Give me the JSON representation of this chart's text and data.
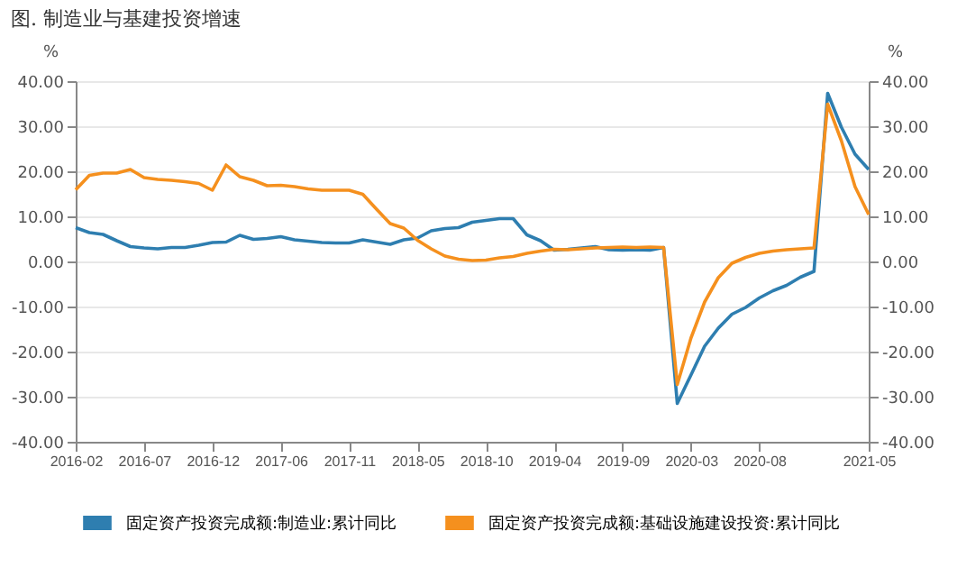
{
  "chart_data": {
    "type": "line",
    "title": "图. 制造业与基建投资增速",
    "categories": [
      "2016-02",
      null,
      null,
      null,
      null,
      "2016-07",
      null,
      null,
      null,
      null,
      "2016-12",
      null,
      null,
      null,
      null,
      "2017-06",
      null,
      null,
      null,
      null,
      "2017-11",
      null,
      null,
      null,
      null,
      "2018-05",
      null,
      null,
      null,
      null,
      "2018-10",
      null,
      null,
      null,
      null,
      "2019-04",
      null,
      null,
      null,
      null,
      "2019-09",
      null,
      null,
      null,
      null,
      "2020-03",
      null,
      null,
      null,
      null,
      "2020-08",
      null,
      null,
      null,
      null,
      null,
      null,
      null,
      "2021-05"
    ],
    "series": [
      {
        "name": "固定资产投资完成额:制造业:累计同比",
        "color": "#2e7eb0",
        "values": [
          7.5,
          6.4,
          6.0,
          4.6,
          3.3,
          3.0,
          2.8,
          3.1,
          3.1,
          3.6,
          4.2,
          4.3,
          5.8,
          4.9,
          5.1,
          5.5,
          4.8,
          4.5,
          4.2,
          4.1,
          4.1,
          4.8,
          4.3,
          3.8,
          4.8,
          5.2,
          6.8,
          7.3,
          7.5,
          8.7,
          9.1,
          9.5,
          9.5,
          5.9,
          4.6,
          2.5,
          2.7,
          3.0,
          3.3,
          2.6,
          2.5,
          2.6,
          2.5,
          3.1,
          -31.5,
          -25.2,
          -18.8,
          -14.8,
          -11.7,
          -10.2,
          -8.1,
          -6.5,
          -5.3,
          -3.5,
          -2.2,
          37.3,
          29.8,
          23.8,
          20.4
        ]
      },
      {
        "name": "固定资产投资完成额:基础设施建设投资:累计同比",
        "color": "#f5901e",
        "axis": "y2",
        "values": [
          15.9,
          19.1,
          19.6,
          19.6,
          20.4,
          18.6,
          18.2,
          18.0,
          17.7,
          17.3,
          15.8,
          21.4,
          18.8,
          18.0,
          16.8,
          16.9,
          16.6,
          16.1,
          15.8,
          15.8,
          15.8,
          14.9,
          11.6,
          8.4,
          7.4,
          4.7,
          2.8,
          1.2,
          0.5,
          0.2,
          0.3,
          0.8,
          1.1,
          1.8,
          2.3,
          2.7,
          2.6,
          2.8,
          3.0,
          3.1,
          3.2,
          3.1,
          3.2,
          3.1,
          -27.3,
          -17.0,
          -9.0,
          -3.6,
          -0.4,
          0.9,
          1.8,
          2.3,
          2.6,
          2.8,
          3.0,
          34.9,
          26.8,
          16.6,
          10.4
        ]
      }
    ],
    "ylabel": "%",
    "y2label": "%",
    "ylim": [
      -40,
      40
    ],
    "yticks": [
      {
        "value": -40,
        "label": "-40.00"
      },
      {
        "value": -30,
        "label": "-30.00"
      },
      {
        "value": -20,
        "label": "-20.00"
      },
      {
        "value": -10,
        "label": "-10.00"
      },
      {
        "value": 0,
        "label": "0.00"
      },
      {
        "value": 10,
        "label": "10.00"
      },
      {
        "value": 20,
        "label": "20.00"
      },
      {
        "value": 30,
        "label": "30.00"
      },
      {
        "value": 40,
        "label": "40.00"
      }
    ],
    "y2lim": [
      -40,
      40
    ],
    "y2ticks": [
      {
        "value": -40,
        "label": "-40.00"
      },
      {
        "value": -30,
        "label": "-30.00"
      },
      {
        "value": -20,
        "label": "-20.00"
      },
      {
        "value": -10,
        "label": "-10.00"
      },
      {
        "value": 0,
        "label": "0.00"
      },
      {
        "value": 10,
        "label": "10.00"
      },
      {
        "value": 20,
        "label": "20.00"
      },
      {
        "value": 30,
        "label": "30.00"
      },
      {
        "value": 40,
        "label": "40.00"
      }
    ],
    "grid": "y",
    "legend": "bottom"
  }
}
